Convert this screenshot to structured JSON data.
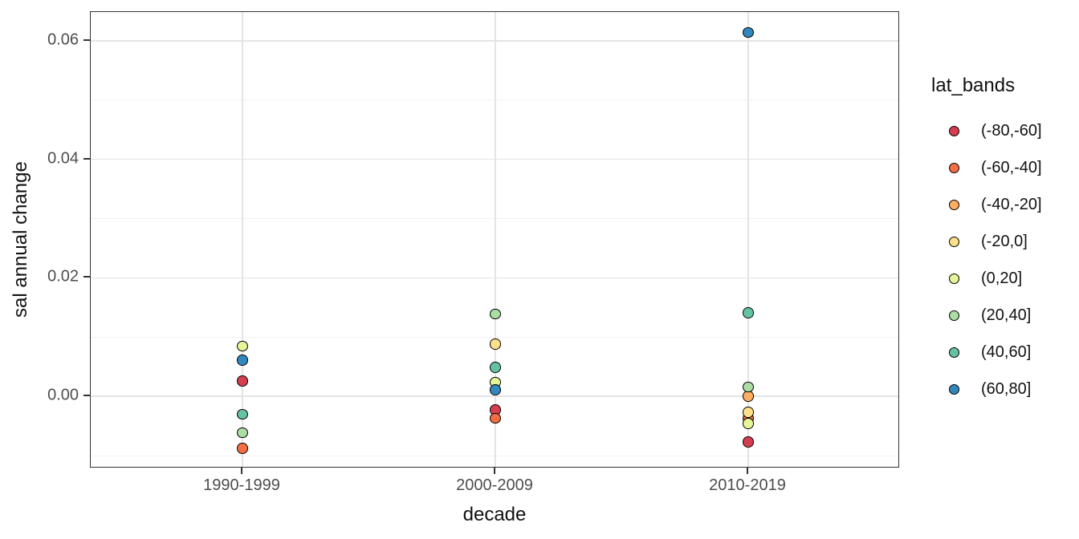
{
  "chart_data": {
    "type": "scatter",
    "title": "",
    "xlabel": "decade",
    "ylabel": "sal annual change",
    "x_categories": [
      "1990-1999",
      "2000-2009",
      "2010-2019"
    ],
    "y_axis": {
      "tick_labels": [
        "0.06",
        "0.04",
        "0.02",
        "0.00"
      ],
      "tick_values": [
        0.06,
        0.04,
        0.02,
        0.0
      ],
      "minor_tick_values": [
        0.05,
        0.03,
        0.01,
        -0.01
      ],
      "range": [
        -0.01215,
        0.06485
      ]
    },
    "grid": "on",
    "legend_position": "right",
    "legend": {
      "title": "lat_bands"
    },
    "series": [
      {
        "name": "(-80,-60]",
        "color": "#d53e4f",
        "points": [
          {
            "category": "1990-1999",
            "value": 0.0026
          },
          {
            "category": "2000-2009",
            "value": -0.0023
          },
          {
            "category": "2010-2019",
            "value": -0.0077
          }
        ]
      },
      {
        "name": "(-60,-40]",
        "color": "#f46d43",
        "points": [
          {
            "category": "1990-1999",
            "value": -0.0088
          },
          {
            "category": "2000-2009",
            "value": -0.0037
          },
          {
            "category": "2010-2019",
            "value": -0.0037
          }
        ]
      },
      {
        "name": "(-40,-20]",
        "color": "#fdae61",
        "points": [
          {
            "category": "2010-2019",
            "value": 0.0
          }
        ]
      },
      {
        "name": "(-20,0]",
        "color": "#fee08b",
        "points": [
          {
            "category": "2000-2009",
            "value": 0.0088
          },
          {
            "category": "2010-2019",
            "value": -0.0027
          }
        ]
      },
      {
        "name": "(0,20]",
        "color": "#e6f598",
        "points": [
          {
            "category": "1990-1999",
            "value": 0.0085
          },
          {
            "category": "2000-2009",
            "value": 0.0024
          },
          {
            "category": "2010-2019",
            "value": -0.0046
          }
        ]
      },
      {
        "name": "(20,40]",
        "color": "#abdda4",
        "points": [
          {
            "category": "1990-1999",
            "value": -0.0061
          },
          {
            "category": "2000-2009",
            "value": 0.0139
          },
          {
            "category": "2010-2019",
            "value": 0.0016
          }
        ]
      },
      {
        "name": "(40,60]",
        "color": "#66c2a5",
        "points": [
          {
            "category": "1990-1999",
            "value": -0.003
          },
          {
            "category": "2000-2009",
            "value": 0.0049
          },
          {
            "category": "2010-2019",
            "value": 0.0141
          }
        ]
      },
      {
        "name": "(60,80]",
        "color": "#3288bd",
        "points": [
          {
            "category": "1990-1999",
            "value": 0.0061
          },
          {
            "category": "2000-2009",
            "value": 0.0011
          },
          {
            "category": "2010-2019",
            "value": 0.0614
          }
        ]
      }
    ]
  },
  "style": {
    "background": "#ffffff",
    "grid_major_color": "#e4e4e4",
    "grid_minor_color": "#f0f0f0",
    "panel_border_color": "#333333",
    "tick_color": "#333333",
    "tick_label_color": "#4d4d4d",
    "axis_title_color": "#111111",
    "point_outline_color": "#000000"
  }
}
